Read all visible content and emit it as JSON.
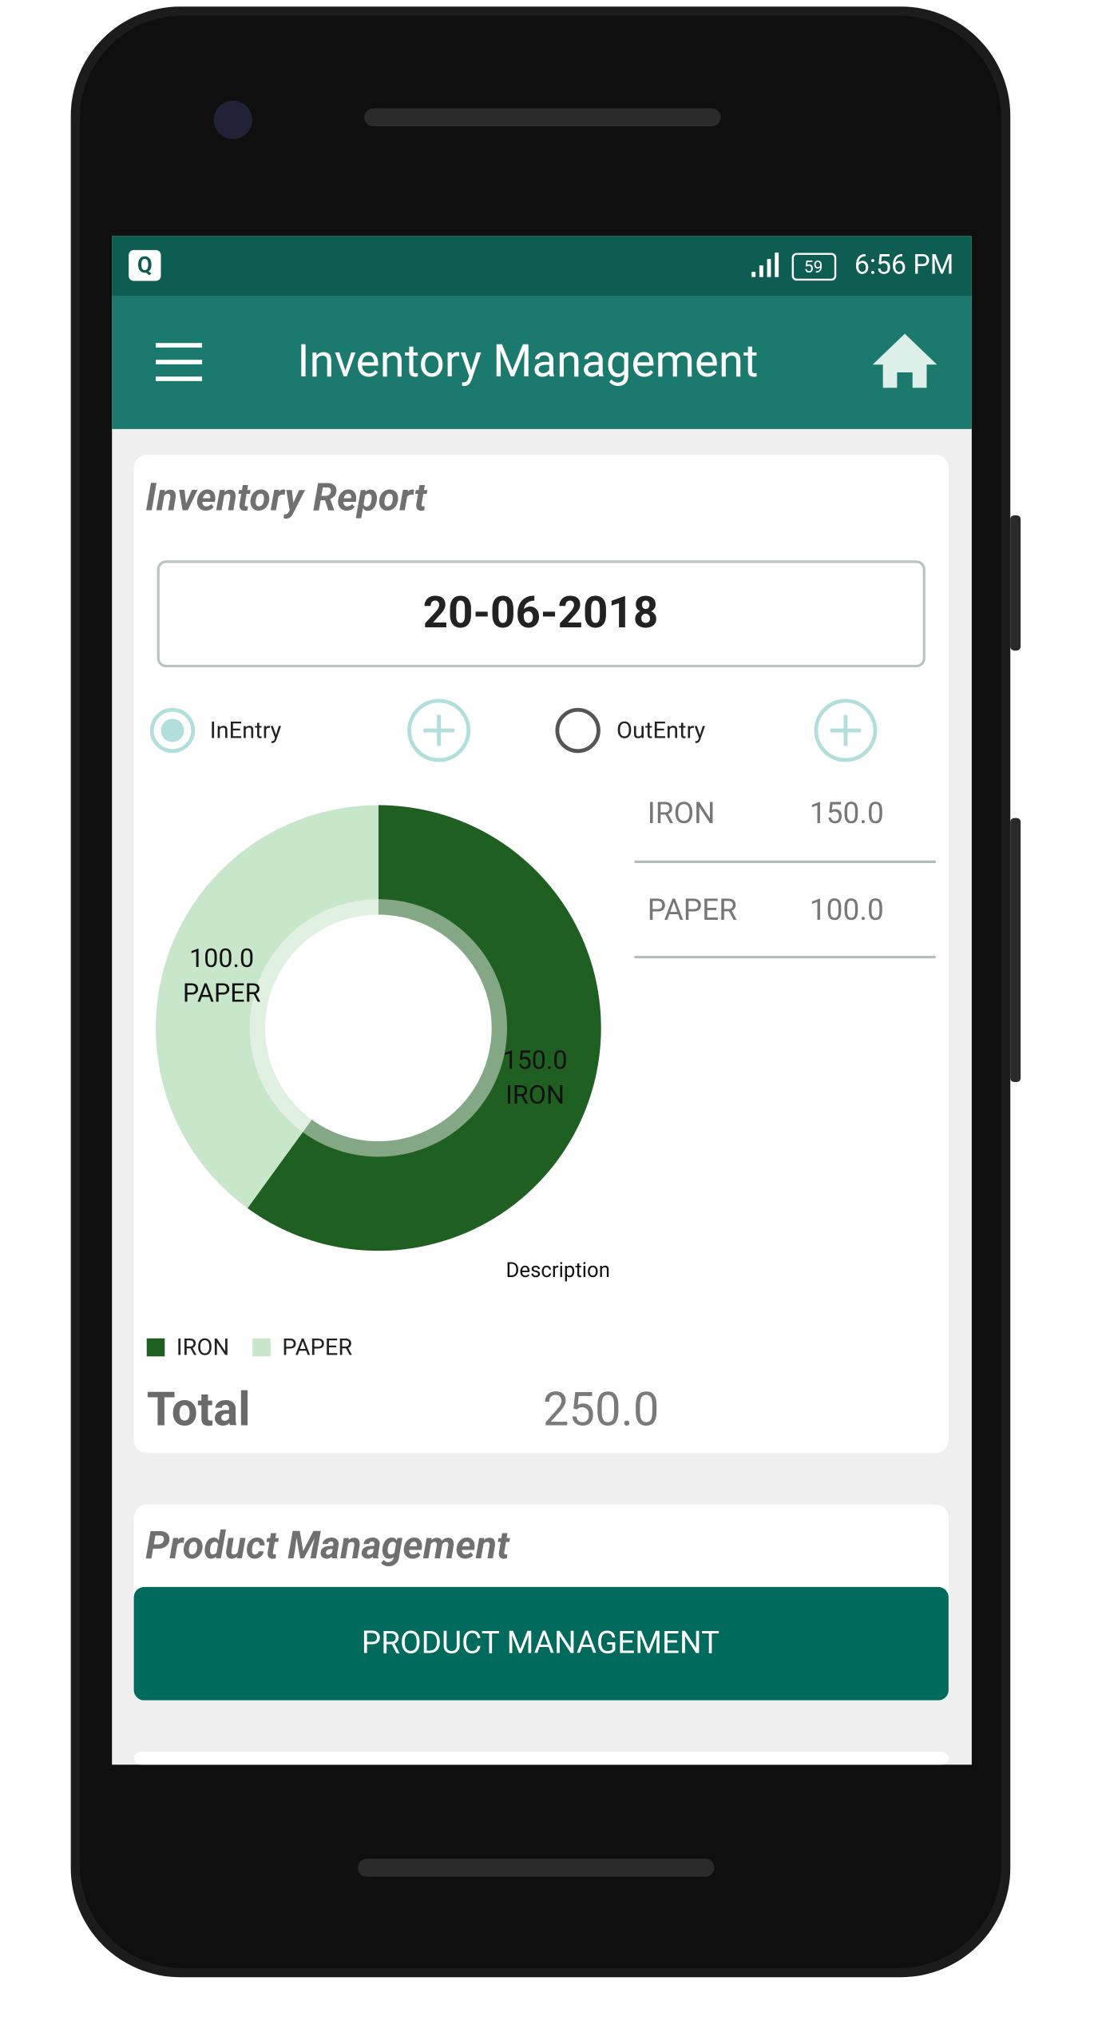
{
  "status_bar": {
    "notification": "Q",
    "battery": "59",
    "time": "6:56 PM"
  },
  "app_bar": {
    "title": "Inventory Management"
  },
  "inventory_report": {
    "title": "Inventory Report",
    "date": "20-06-2018",
    "options": [
      "InEntry",
      "OutEntry"
    ],
    "table": {
      "rows": [
        [
          "IRON",
          "150.0"
        ],
        [
          "PAPER",
          "100.0"
        ]
      ]
    },
    "total_label": "Total",
    "total": "250.0"
  },
  "chart_data": {
    "type": "pie",
    "categories": [
      "IRON",
      "PAPER"
    ],
    "values": [
      150,
      100
    ],
    "value_labels": [
      "150.0",
      "100.0"
    ],
    "colors": [
      "#1f5f22",
      "#c8e6c9"
    ],
    "description": "Description",
    "legend": true
  },
  "product_management": {
    "title": "Product Management",
    "button": "PRODUCT MANAGEMENT"
  }
}
